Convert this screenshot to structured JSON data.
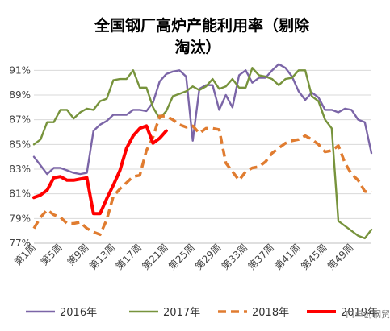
{
  "chart_data": {
    "type": "line",
    "title_line1": "全国钢厂高炉产能利用率（剔除",
    "title_line2": "淘汰）",
    "ylim": [
      77,
      92
    ],
    "yticks": [
      "77%",
      "79%",
      "81%",
      "83%",
      "85%",
      "87%",
      "89%",
      "91%"
    ],
    "ytick_values": [
      77,
      79,
      81,
      83,
      85,
      87,
      89,
      91
    ],
    "grid": true,
    "x_count": 52,
    "xtick_indices": [
      1,
      5,
      9,
      13,
      17,
      21,
      25,
      29,
      33,
      37,
      41,
      45,
      49
    ],
    "xtick_labels": [
      "第1周",
      "第5周",
      "第9周",
      "第13周",
      "第17周",
      "第21周",
      "第25周",
      "第29周",
      "第33周",
      "第37周",
      "第41周",
      "第45周",
      "第49周"
    ],
    "series": [
      {
        "name": "2016年",
        "color": "#7b65a7",
        "style": "solid",
        "width": 2.4,
        "start": 1,
        "values": [
          84.0,
          83.3,
          82.6,
          83.1,
          83.1,
          82.9,
          82.7,
          82.6,
          82.7,
          86.1,
          86.6,
          86.9,
          87.4,
          87.4,
          87.4,
          87.8,
          87.8,
          87.7,
          88.4,
          90.1,
          90.7,
          90.9,
          91.0,
          90.5,
          85.3,
          89.5,
          89.8,
          89.8,
          87.8,
          89.0,
          88.0,
          90.6,
          91.0,
          90.0,
          90.4,
          90.4,
          91.0,
          91.5,
          91.2,
          90.5,
          89.3,
          88.6,
          89.2,
          88.8,
          87.8,
          87.8,
          87.6,
          87.9,
          87.8,
          87.0,
          86.8,
          84.3
        ]
      },
      {
        "name": "2017年",
        "color": "#77933c",
        "style": "solid",
        "width": 2.4,
        "start": 1,
        "values": [
          85.0,
          85.4,
          86.8,
          86.8,
          87.8,
          87.8,
          87.1,
          87.6,
          87.9,
          87.8,
          88.5,
          88.7,
          90.2,
          90.3,
          90.3,
          91.0,
          89.6,
          89.6,
          88.0,
          87.1,
          87.7,
          88.9,
          89.1,
          89.3,
          89.7,
          89.4,
          89.7,
          90.3,
          89.5,
          89.7,
          90.3,
          89.6,
          89.6,
          91.2,
          90.6,
          90.5,
          90.3,
          89.8,
          90.3,
          90.4,
          91.0,
          91.0,
          88.9,
          88.5,
          87.0,
          86.3,
          78.8,
          78.4,
          78.0,
          77.6,
          77.4,
          78.1
        ]
      },
      {
        "name": "2018年",
        "color": "#e07c30",
        "style": "dashed",
        "width": 3.5,
        "start": 1,
        "values": [
          78.2,
          79.1,
          79.7,
          79.3,
          79.1,
          78.6,
          78.6,
          78.7,
          78.2,
          77.9,
          77.7,
          78.9,
          80.8,
          81.4,
          81.9,
          82.4,
          82.5,
          84.5,
          85.6,
          87.3,
          87.3,
          87.0,
          86.6,
          86.4,
          86.5,
          85.9,
          86.3,
          86.3,
          86.2,
          83.5,
          82.8,
          82.1,
          82.8,
          83.1,
          83.2,
          83.6,
          84.3,
          84.7,
          85.1,
          85.3,
          85.4,
          85.7,
          85.4,
          85.0,
          84.4,
          84.5,
          84.9,
          83.5,
          82.6,
          82.1,
          81.2,
          81.1
        ]
      },
      {
        "name": "2019年",
        "color": "#ff0000",
        "style": "solid",
        "width": 4.0,
        "start": 1,
        "values": [
          80.7,
          80.9,
          81.3,
          82.3,
          82.4,
          82.1,
          82.1,
          82.2,
          82.3,
          79.4,
          79.4,
          80.6,
          81.7,
          82.9,
          84.7,
          85.7,
          86.3,
          86.5,
          85.1,
          85.5,
          86.1
        ]
      }
    ],
    "legend": {
      "placement": "bottom",
      "entries": [
        "2016年",
        "2017年",
        "2018年",
        "2019年"
      ]
    }
  },
  "watermark": "口卓创钢贸"
}
